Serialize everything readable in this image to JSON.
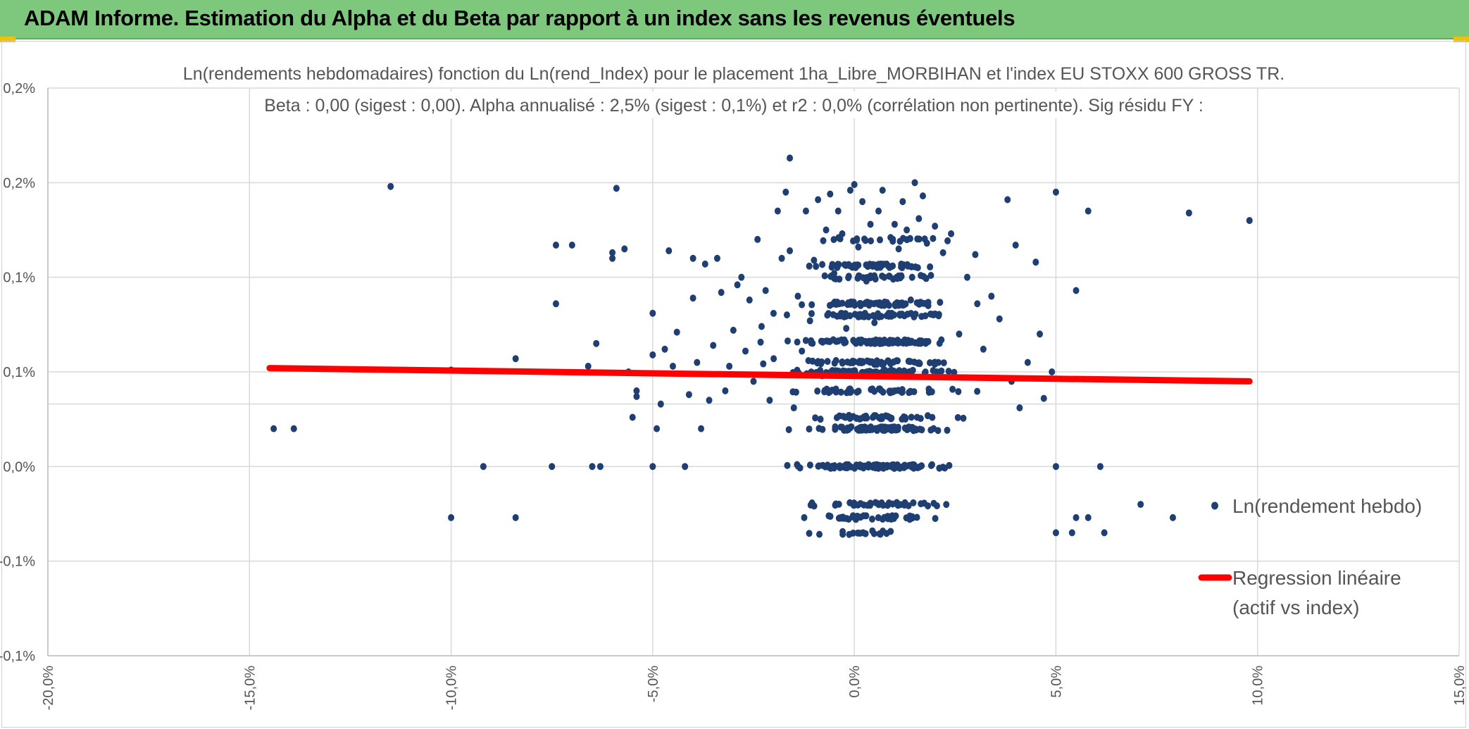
{
  "banner": {
    "title": "ADAM Informe. Estimation du Alpha et du Beta par rapport à un index sans les revenus éventuels"
  },
  "colors": {
    "banner_bg": "#7dc87d",
    "points": "#1f3f73",
    "regression": "#ff0000",
    "grid": "#d9d9d9",
    "corner_accent": "#f2c200"
  },
  "chart_data": {
    "type": "scatter",
    "title_lines": [
      "Ln(rendements hebdomadaires) fonction du Ln(rend_Index) pour le placement 1ha_Libre_MORBIHAN et l'index EU STOXX 600 GROSS TR.",
      "Beta : 0,00 (sigest : 0,00). Alpha annualisé : 2,5% (sigest : 0,1%) et r2 : 0,0% (corrélation non pertinente). Sig résidu FY :"
    ],
    "xlim": [
      -20,
      15
    ],
    "ylim": [
      -0.1,
      0.2
    ],
    "x_ticks": [
      {
        "value": -20,
        "label": "-20,0%"
      },
      {
        "value": -15,
        "label": "-15,0%"
      },
      {
        "value": -10,
        "label": "-10,0%"
      },
      {
        "value": -5,
        "label": "-5,0%"
      },
      {
        "value": 0,
        "label": "0,0%"
      },
      {
        "value": 5,
        "label": "5,0%"
      },
      {
        "value": 10,
        "label": "10,0%"
      },
      {
        "value": 15,
        "label": "15,0%"
      }
    ],
    "y_ticks": [
      {
        "value": 0.2,
        "label": "0,2%"
      },
      {
        "value": 0.15,
        "label": "0,2%"
      },
      {
        "value": 0.1,
        "label": "0,1%"
      },
      {
        "value": 0.05,
        "label": "0,1%"
      },
      {
        "value": 0.0,
        "label": "0,0%"
      },
      {
        "value": -0.05,
        "label": "-0,1%"
      },
      {
        "value": -0.1,
        "label": "-0,1%"
      }
    ],
    "series": [
      {
        "name": "Ln(rendement hebdo)",
        "kind": "points",
        "level_values": [
          -0.035,
          -0.027,
          -0.02,
          0.0,
          0.02,
          0.026,
          0.04,
          0.05,
          0.055,
          0.066,
          0.08,
          0.086,
          0.1,
          0.106,
          0.12
        ],
        "points": [
          [
            -14.4,
            0.02
          ],
          [
            -13.9,
            0.02
          ],
          [
            -11.5,
            0.148
          ],
          [
            -10.0,
            0.051
          ],
          [
            -10.0,
            -0.027
          ],
          [
            -9.2,
            0.0
          ],
          [
            -8.4,
            0.057
          ],
          [
            -8.4,
            -0.027
          ],
          [
            -7.5,
            0.0
          ],
          [
            -7.4,
            0.086
          ],
          [
            -7.4,
            0.117
          ],
          [
            -7.0,
            0.117
          ],
          [
            -6.6,
            0.053
          ],
          [
            -6.5,
            0.0
          ],
          [
            -6.3,
            0.0
          ],
          [
            -6.4,
            0.065
          ],
          [
            -6.0,
            0.113
          ],
          [
            -6.0,
            0.11
          ],
          [
            -5.9,
            0.147
          ],
          [
            -5.7,
            0.115
          ],
          [
            -5.6,
            0.05
          ],
          [
            -5.5,
            0.026
          ],
          [
            -5.4,
            0.04
          ],
          [
            -5.4,
            0.037
          ],
          [
            -5.0,
            0.059
          ],
          [
            -5.0,
            0.081
          ],
          [
            -5.0,
            0.0
          ],
          [
            -4.9,
            0.02
          ],
          [
            -4.8,
            0.033
          ],
          [
            -4.7,
            0.062
          ],
          [
            -4.6,
            0.114
          ],
          [
            -4.5,
            0.053
          ],
          [
            -4.4,
            0.071
          ],
          [
            -4.2,
            0.0
          ],
          [
            -4.1,
            0.038
          ],
          [
            -4.0,
            0.089
          ],
          [
            -4.0,
            0.11
          ],
          [
            -3.9,
            0.055
          ],
          [
            -3.8,
            0.02
          ],
          [
            -3.7,
            0.107
          ],
          [
            -3.6,
            0.035
          ],
          [
            -3.5,
            0.064
          ],
          [
            -3.4,
            0.11
          ],
          [
            -3.3,
            0.092
          ],
          [
            -3.2,
            0.04
          ],
          [
            -3.1,
            0.053
          ],
          [
            -3.0,
            0.072
          ],
          [
            -2.9,
            0.096
          ],
          [
            -2.8,
            0.1
          ],
          [
            -2.7,
            0.061
          ],
          [
            -2.6,
            0.088
          ],
          [
            -2.5,
            0.045
          ],
          [
            -2.4,
            0.12
          ],
          [
            -2.3,
            0.074
          ],
          [
            -2.2,
            0.093
          ],
          [
            -2.1,
            0.035
          ],
          [
            -2.0,
            0.057
          ],
          [
            -1.9,
            0.135
          ],
          [
            -1.8,
            0.11
          ],
          [
            -1.7,
            0.145
          ],
          [
            -1.6,
            0.114
          ],
          [
            -1.6,
            0.163
          ],
          [
            -1.5,
            0.031
          ],
          [
            -1.4,
            0.09
          ],
          [
            -1.3,
            0.061
          ],
          [
            -1.2,
            0.135
          ],
          [
            -1.1,
            0.077
          ],
          [
            -1.0,
            0.109
          ],
          [
            -0.9,
            0.141
          ],
          [
            -0.8,
            0.048
          ],
          [
            -0.7,
            0.125
          ],
          [
            -0.6,
            0.144
          ],
          [
            -0.5,
            0.102
          ],
          [
            -0.4,
            0.135
          ],
          [
            -0.3,
            0.123
          ],
          [
            -0.2,
            0.073
          ],
          [
            -0.1,
            0.146
          ],
          [
            0.0,
            0.149
          ],
          [
            0.1,
            0.116
          ],
          [
            0.2,
            0.14
          ],
          [
            0.3,
            0.098
          ],
          [
            0.4,
            0.128
          ],
          [
            0.5,
            0.076
          ],
          [
            0.6,
            0.135
          ],
          [
            0.7,
            0.146
          ],
          [
            0.8,
            0.107
          ],
          [
            0.9,
            0.121
          ],
          [
            1.0,
            0.128
          ],
          [
            1.1,
            0.115
          ],
          [
            1.2,
            0.14
          ],
          [
            1.3,
            0.125
          ],
          [
            1.4,
            0.088
          ],
          [
            1.5,
            0.15
          ],
          [
            1.6,
            0.131
          ],
          [
            1.7,
            0.143
          ],
          [
            1.8,
            0.118
          ],
          [
            1.9,
            0.101
          ],
          [
            2.0,
            0.127
          ],
          [
            2.2,
            0.113
          ],
          [
            2.4,
            0.123
          ],
          [
            2.6,
            0.07
          ],
          [
            2.8,
            0.1
          ],
          [
            3.0,
            0.112
          ],
          [
            3.2,
            0.062
          ],
          [
            3.4,
            0.09
          ],
          [
            3.6,
            0.078
          ],
          [
            3.8,
            0.141
          ],
          [
            3.9,
            0.045
          ],
          [
            4.0,
            0.117
          ],
          [
            4.1,
            0.031
          ],
          [
            4.3,
            0.055
          ],
          [
            4.5,
            0.108
          ],
          [
            4.6,
            0.07
          ],
          [
            4.7,
            0.036
          ],
          [
            4.9,
            0.05
          ],
          [
            5.0,
            0.145
          ],
          [
            5.0,
            -0.035
          ],
          [
            5.0,
            0.0
          ],
          [
            5.4,
            -0.035
          ],
          [
            5.5,
            -0.027
          ],
          [
            5.5,
            0.093
          ],
          [
            5.8,
            0.135
          ],
          [
            5.8,
            -0.027
          ],
          [
            6.1,
            0.0
          ],
          [
            6.2,
            -0.035
          ],
          [
            7.1,
            -0.02
          ],
          [
            7.9,
            -0.027
          ],
          [
            8.3,
            0.134
          ],
          [
            9.8,
            0.13
          ]
        ]
      },
      {
        "name": "Regression linéaire (actif vs index)",
        "kind": "line",
        "start": [
          -14.5,
          0.052
        ],
        "end": [
          9.8,
          0.045
        ]
      }
    ],
    "legend": {
      "placement": "right",
      "entries": [
        "Ln(rendement hebdo)",
        "Regression linéaire",
        "(actif vs index)"
      ]
    },
    "grid": true
  }
}
